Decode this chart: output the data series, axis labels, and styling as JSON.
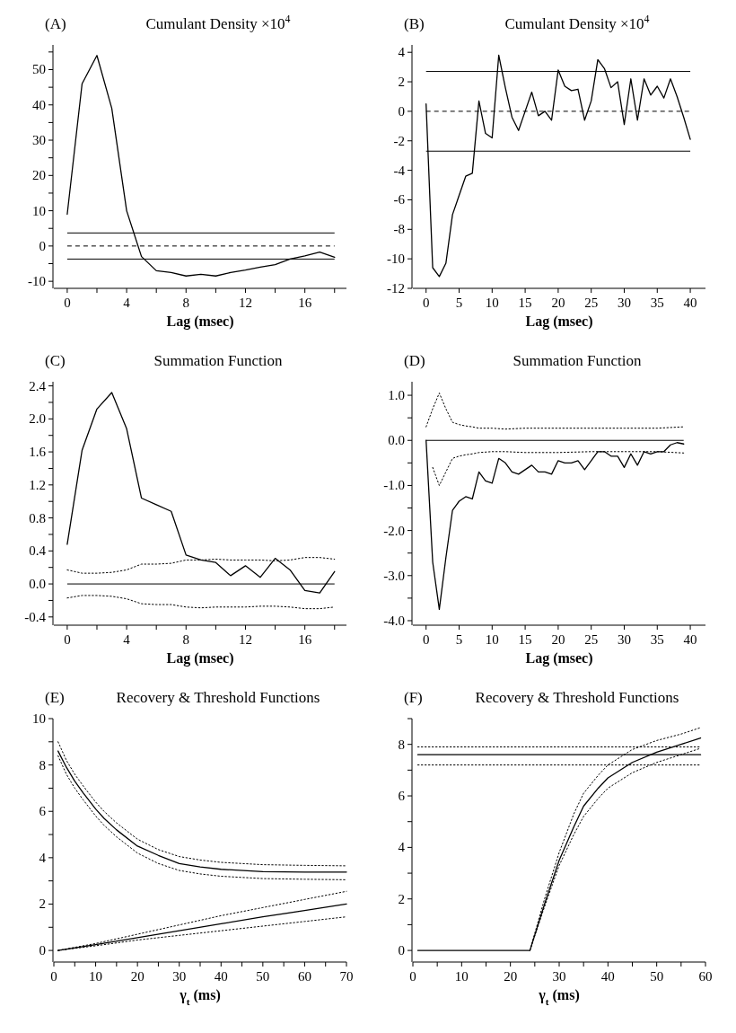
{
  "chart_data": [
    {
      "type": "line",
      "title": "Cumulant Density ×10$^{4}$",
      "annotations": [
        "(A)"
      ],
      "xlabel": "Lag (msec)",
      "xlim": [
        -0.9,
        18.8
      ],
      "ylim": [
        -12,
        57
      ],
      "xticks": [
        0,
        {
          "value": 2,
          "label": null
        },
        4,
        {
          "value": 6,
          "label": null
        },
        8,
        {
          "value": 10,
          "label": null
        },
        12,
        {
          "value": 14,
          "label": null
        },
        16,
        {
          "value": 18,
          "label": null
        }
      ],
      "yticks": [
        -10,
        {
          "value": -5,
          "label": null
        },
        0,
        {
          "value": 5,
          "label": null
        },
        10,
        {
          "value": 15,
          "label": null
        },
        20,
        {
          "value": 25,
          "label": null
        },
        30,
        {
          "value": 35,
          "label": null
        },
        40,
        {
          "value": 45,
          "label": null
        },
        50,
        {
          "value": 55,
          "label": null
        }
      ],
      "ref_lines": [
        {
          "axis": "y",
          "value": 3.7,
          "color": "#000000",
          "line_style": "solid"
        },
        {
          "axis": "y",
          "value": 0,
          "color": "#000000",
          "line_style": "dashed"
        },
        {
          "axis": "y",
          "value": -3.7,
          "color": "#000000",
          "line_style": "solid"
        }
      ],
      "series": [
        {
          "color": "#000000",
          "line_style": "solid",
          "x": [
            0,
            1,
            2,
            3,
            4,
            5,
            6,
            7,
            8,
            9,
            10,
            11,
            12,
            13,
            14,
            15,
            16,
            17,
            18
          ],
          "values": [
            9,
            46,
            54,
            39,
            10,
            -3,
            -7,
            -7.5,
            -8.5,
            -8,
            -8.5,
            -7.5,
            -6.8,
            -6,
            -5.3,
            -3.7,
            -2.8,
            -1.7,
            -3.2
          ]
        }
      ]
    },
    {
      "type": "line",
      "title": "Cumulant Density ×10$^{4}$",
      "annotations": [
        "(B)"
      ],
      "xlabel": "Lag (msec)",
      "xlim": [
        -2,
        42.3
      ],
      "ylim": [
        -12,
        4.5
      ],
      "xticks": [
        0,
        5,
        10,
        15,
        20,
        25,
        30,
        35,
        40
      ],
      "yticks": [
        -12,
        -10,
        -8,
        -6,
        -4,
        -2,
        0,
        2,
        4
      ],
      "ref_lines": [
        {
          "axis": "y",
          "value": 2.7,
          "color": "#000000",
          "line_style": "solid"
        },
        {
          "axis": "y",
          "value": 0,
          "color": "#000000",
          "line_style": "dashed"
        },
        {
          "axis": "y",
          "value": -2.7,
          "color": "#000000",
          "line_style": "solid"
        }
      ],
      "series": [
        {
          "color": "#000000",
          "line_style": "solid",
          "x": [
            0,
            1,
            2,
            3,
            4,
            5,
            6,
            7,
            8,
            9,
            10,
            11,
            12,
            13,
            14,
            15,
            16,
            17,
            18,
            19,
            20,
            21,
            22,
            23,
            24,
            25,
            26,
            27,
            28,
            29,
            30,
            31,
            32,
            33,
            34,
            35,
            36,
            37,
            38,
            39,
            40
          ],
          "values": [
            0.5,
            -10.6,
            -11.2,
            -10.3,
            -7,
            -5.7,
            -4.4,
            -4.2,
            0.7,
            -1.5,
            -1.8,
            3.8,
            1.6,
            -0.4,
            -1.3,
            0,
            1.3,
            -0.3,
            0,
            -0.6,
            2.8,
            1.7,
            1.4,
            1.5,
            -0.6,
            0.7,
            3.5,
            2.9,
            1.6,
            2,
            -0.9,
            2.2,
            -0.6,
            2.2,
            1.1,
            1.7,
            0.9,
            2.2,
            1,
            -0.4,
            -1.9
          ]
        }
      ]
    },
    {
      "type": "line",
      "title": "Summation Function",
      "annotations": [
        "(C)"
      ],
      "xlabel": "Lag (msec)",
      "xlim": [
        -0.9,
        18.8
      ],
      "ylim": [
        -0.5,
        2.45
      ],
      "xticks": [
        0,
        {
          "value": 2,
          "label": null
        },
        4,
        {
          "value": 6,
          "label": null
        },
        8,
        {
          "value": 10,
          "label": null
        },
        12,
        {
          "value": 14,
          "label": null
        },
        16,
        {
          "value": 18,
          "label": null
        }
      ],
      "yticks": [
        -0.4,
        {
          "value": -0.2,
          "label": null
        },
        {
          "value": 0,
          "label": "0.0"
        },
        {
          "value": 0.2,
          "label": null
        },
        0.4,
        {
          "value": 0.6,
          "label": null
        },
        0.8,
        {
          "value": 1,
          "label": null
        },
        1.2,
        {
          "value": 1.4,
          "label": null
        },
        1.6,
        {
          "value": 1.8,
          "label": null
        },
        {
          "value": 2,
          "label": "2.0"
        },
        {
          "value": 2.2,
          "label": null
        },
        2.4
      ],
      "ref_lines": [
        {
          "axis": "y",
          "value": 0,
          "color": "#000000",
          "line_style": "solid"
        }
      ],
      "series": [
        {
          "color": "#000000",
          "line_style": "solid",
          "x": [
            0,
            1,
            2,
            3,
            4,
            5,
            6,
            7,
            8,
            9,
            10,
            11,
            12,
            13,
            14,
            15,
            16,
            17,
            18
          ],
          "values": [
            0.48,
            1.62,
            2.12,
            2.32,
            1.88,
            1.04,
            0.96,
            0.88,
            0.35,
            0.29,
            0.26,
            0.1,
            0.22,
            0.08,
            0.31,
            0.17,
            -0.08,
            -0.11,
            0.15
          ]
        },
        {
          "color": "#000000",
          "line_style": "dotted",
          "x": [
            0,
            1,
            2,
            3,
            4,
            5,
            6,
            7,
            8,
            9,
            10,
            11,
            12,
            13,
            14,
            15,
            16,
            17,
            18
          ],
          "values": [
            0.17,
            0.13,
            0.13,
            0.14,
            0.17,
            0.24,
            0.24,
            0.25,
            0.29,
            0.29,
            0.3,
            0.29,
            0.29,
            0.29,
            0.28,
            0.29,
            0.32,
            0.32,
            0.3
          ]
        },
        {
          "color": "#000000",
          "line_style": "dotted",
          "x": [
            0,
            1,
            2,
            3,
            4,
            5,
            6,
            7,
            8,
            9,
            10,
            11,
            12,
            13,
            14,
            15,
            16,
            17,
            18
          ],
          "values": [
            -0.17,
            -0.14,
            -0.14,
            -0.15,
            -0.18,
            -0.24,
            -0.25,
            -0.25,
            -0.28,
            -0.29,
            -0.28,
            -0.28,
            -0.28,
            -0.27,
            -0.27,
            -0.28,
            -0.3,
            -0.3,
            -0.28
          ]
        }
      ]
    },
    {
      "type": "line",
      "title": "Summation Function",
      "annotations": [
        "(D)"
      ],
      "xlabel": "Lag (msec)",
      "xlim": [
        -2,
        42.3
      ],
      "ylim": [
        -4.1,
        1.3
      ],
      "xticks": [
        0,
        5,
        10,
        15,
        20,
        25,
        30,
        35,
        40
      ],
      "yticks": [
        {
          "value": -4,
          "label": "-4.0"
        },
        {
          "value": -3.5,
          "label": null
        },
        {
          "value": -3,
          "label": "-3.0"
        },
        {
          "value": -2.5,
          "label": null
        },
        {
          "value": -2,
          "label": "-2.0"
        },
        {
          "value": -1.5,
          "label": null
        },
        {
          "value": -1,
          "label": "-1.0"
        },
        {
          "value": -0.5,
          "label": null
        },
        {
          "value": 0,
          "label": "0.0"
        },
        {
          "value": 0.5,
          "label": null
        },
        {
          "value": 1,
          "label": "1.0"
        }
      ],
      "ref_lines": [
        {
          "axis": "y",
          "value": 0,
          "color": "#000000",
          "line_style": "solid"
        }
      ],
      "series": [
        {
          "color": "#000000",
          "line_style": "solid",
          "x": [
            0,
            1,
            2,
            3,
            4,
            5,
            6,
            7,
            8,
            9,
            10,
            11,
            12,
            13,
            14,
            15,
            16,
            17,
            18,
            19,
            20,
            21,
            22,
            23,
            24,
            25,
            26,
            27,
            28,
            29,
            30,
            31,
            32,
            33,
            34,
            35,
            36,
            37,
            38,
            39
          ],
          "values": [
            0,
            -2.7,
            -3.75,
            -2.6,
            -1.55,
            -1.35,
            -1.25,
            -1.3,
            -0.7,
            -0.9,
            -0.95,
            -0.4,
            -0.5,
            -0.7,
            -0.75,
            -0.65,
            -0.55,
            -0.7,
            -0.7,
            -0.75,
            -0.45,
            -0.5,
            -0.5,
            -0.45,
            -0.65,
            -0.45,
            -0.25,
            -0.25,
            -0.35,
            -0.35,
            -0.6,
            -0.3,
            -0.55,
            -0.25,
            -0.3,
            -0.25,
            -0.25,
            -0.1,
            -0.05,
            -0.08
          ]
        },
        {
          "color": "#000000",
          "line_style": "dotted",
          "x": [
            0,
            1,
            2,
            3,
            4,
            5,
            6,
            7,
            8,
            10,
            12,
            15,
            20,
            25,
            30,
            35,
            39
          ],
          "values": [
            0.3,
            0.7,
            1.05,
            0.7,
            0.4,
            0.35,
            0.32,
            0.3,
            0.27,
            0.27,
            0.25,
            0.27,
            0.27,
            0.27,
            0.27,
            0.27,
            0.3
          ]
        },
        {
          "color": "#000000",
          "line_style": "dotted",
          "x": [
            1,
            2,
            3,
            4,
            5,
            6,
            7,
            8,
            10,
            12,
            15,
            20,
            25,
            30,
            35,
            39
          ],
          "values": [
            -0.6,
            -1.0,
            -0.7,
            -0.4,
            -0.35,
            -0.32,
            -0.3,
            -0.27,
            -0.25,
            -0.25,
            -0.27,
            -0.27,
            -0.25,
            -0.25,
            -0.25,
            -0.28
          ]
        }
      ]
    },
    {
      "type": "line",
      "title": "Recovery & Threshold Functions",
      "annotations": [
        "(E)"
      ],
      "xlabel": "γ$_{t}$ (ms)",
      "xlim": [
        0,
        70
      ],
      "ylim": [
        -0.5,
        10
      ],
      "xticks": [
        0,
        {
          "value": 5,
          "label": null
        },
        10,
        {
          "value": 15,
          "label": null
        },
        20,
        {
          "value": 25,
          "label": null
        },
        30,
        {
          "value": 35,
          "label": null
        },
        40,
        {
          "value": 45,
          "label": null
        },
        50,
        {
          "value": 55,
          "label": null
        },
        60,
        {
          "value": 65,
          "label": null
        },
        70
      ],
      "yticks": [
        0,
        {
          "value": 1,
          "label": null
        },
        2,
        {
          "value": 3,
          "label": null
        },
        4,
        {
          "value": 5,
          "label": null
        },
        6,
        {
          "value": 7,
          "label": null
        },
        8,
        {
          "value": 9,
          "label": null
        },
        10
      ],
      "series": [
        {
          "color": "#000000",
          "line_style": "solid",
          "x": [
            1,
            3,
            5,
            7,
            10,
            12,
            15,
            20,
            25,
            30,
            35,
            40,
            50,
            60,
            70
          ],
          "values": [
            8.6,
            7.9,
            7.3,
            6.8,
            6.1,
            5.7,
            5.2,
            4.5,
            4.1,
            3.75,
            3.6,
            3.5,
            3.4,
            3.38,
            3.38
          ]
        },
        {
          "color": "#000000",
          "line_style": "dotted",
          "x": [
            1,
            3,
            5,
            7,
            10,
            12,
            15,
            20,
            25,
            30,
            35,
            40,
            50,
            60,
            70
          ],
          "values": [
            9.0,
            8.2,
            7.6,
            7.1,
            6.4,
            6.0,
            5.5,
            4.8,
            4.35,
            4.05,
            3.9,
            3.8,
            3.7,
            3.67,
            3.65
          ]
        },
        {
          "color": "#000000",
          "line_style": "dotted",
          "x": [
            1,
            3,
            5,
            7,
            10,
            12,
            15,
            20,
            25,
            30,
            35,
            40,
            50,
            60,
            70
          ],
          "values": [
            8.4,
            7.6,
            7.0,
            6.5,
            5.8,
            5.4,
            4.9,
            4.2,
            3.75,
            3.45,
            3.3,
            3.2,
            3.1,
            3.07,
            3.05
          ]
        },
        {
          "color": "#000000",
          "line_style": "solid",
          "x": [
            1,
            10,
            20,
            30,
            40,
            50,
            60,
            70
          ],
          "values": [
            0,
            0.25,
            0.55,
            0.85,
            1.15,
            1.45,
            1.72,
            2.0
          ]
        },
        {
          "color": "#000000",
          "line_style": "dotted",
          "x": [
            1,
            10,
            20,
            30,
            40,
            50,
            60,
            70
          ],
          "values": [
            0,
            0.3,
            0.7,
            1.1,
            1.5,
            1.85,
            2.2,
            2.55
          ]
        },
        {
          "color": "#000000",
          "line_style": "dotted",
          "x": [
            1,
            10,
            20,
            30,
            40,
            50,
            60,
            70
          ],
          "values": [
            0,
            0.2,
            0.45,
            0.65,
            0.85,
            1.05,
            1.25,
            1.45
          ]
        }
      ]
    },
    {
      "type": "line",
      "title": "Recovery & Threshold Functions",
      "annotations": [
        "(F)"
      ],
      "xlabel": "γ$_{t}$ (ms)",
      "xlim": [
        0,
        60
      ],
      "ylim": [
        -0.45,
        9
      ],
      "xticks": [
        0,
        {
          "value": 5,
          "label": null
        },
        10,
        {
          "value": 15,
          "label": null
        },
        20,
        {
          "value": 25,
          "label": null
        },
        30,
        {
          "value": 35,
          "label": null
        },
        40,
        {
          "value": 45,
          "label": null
        },
        50,
        {
          "value": 55,
          "label": null
        },
        60
      ],
      "yticks": [
        0,
        {
          "value": 1,
          "label": null
        },
        2,
        {
          "value": 3,
          "label": null
        },
        4,
        {
          "value": 5,
          "label": null
        },
        6,
        {
          "value": 7,
          "label": null
        },
        8,
        {
          "value": 9,
          "label": null
        }
      ],
      "series": [
        {
          "color": "#000000",
          "line_style": "solid",
          "x": [
            1,
            59
          ],
          "values": [
            7.6,
            7.6
          ]
        },
        {
          "color": "#000000",
          "line_style": "dotted",
          "x": [
            1,
            59
          ],
          "values": [
            7.9,
            7.9
          ]
        },
        {
          "color": "#000000",
          "line_style": "dotted",
          "x": [
            1,
            59
          ],
          "values": [
            7.2,
            7.2
          ]
        },
        {
          "color": "#000000",
          "line_style": "solid",
          "x": [
            1,
            24,
            27,
            30,
            33,
            35,
            38,
            40,
            45,
            50,
            55,
            59
          ],
          "values": [
            0,
            0,
            1.8,
            3.5,
            4.8,
            5.6,
            6.3,
            6.7,
            7.3,
            7.7,
            8.0,
            8.25
          ]
        },
        {
          "color": "#000000",
          "line_style": "dotted",
          "x": [
            24,
            27,
            30,
            33,
            35,
            38,
            40,
            45,
            50,
            55,
            59
          ],
          "values": [
            0,
            2.0,
            3.8,
            5.3,
            6.1,
            6.8,
            7.2,
            7.8,
            8.15,
            8.4,
            8.65
          ]
        },
        {
          "color": "#000000",
          "line_style": "dotted",
          "x": [
            24,
            27,
            30,
            33,
            35,
            38,
            40,
            45,
            50,
            55,
            59
          ],
          "values": [
            0,
            1.7,
            3.3,
            4.5,
            5.2,
            5.9,
            6.3,
            6.9,
            7.3,
            7.6,
            7.85
          ]
        }
      ]
    }
  ]
}
